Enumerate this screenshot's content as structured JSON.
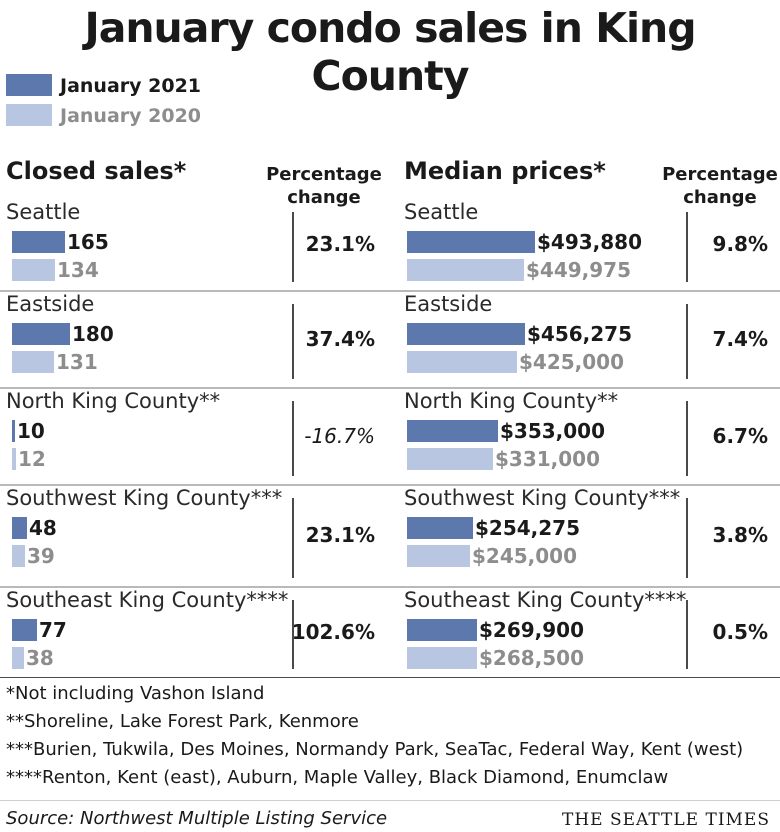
{
  "title": "January condo sales in King County",
  "legend": [
    {
      "label": "January 2021",
      "color": "#5d78ad",
      "label_color": "#1a1a1a"
    },
    {
      "label": "January 2020",
      "color": "#b8c6e2",
      "label_color": "#8d8d8d"
    }
  ],
  "headers": {
    "sales": "Closed sales*",
    "prices": "Median prices*",
    "pct_line1": "Percentage",
    "pct_line2": "change"
  },
  "chart_data": [
    {
      "type": "bar",
      "title": "Closed sales*",
      "categories": [
        "Seattle",
        "Eastside",
        "North King County**",
        "Southwest King County***",
        "Southeast King County****"
      ],
      "series": [
        {
          "name": "January 2021",
          "values": [
            165,
            180,
            10,
            48,
            77
          ],
          "labels": [
            "165",
            "180",
            "10",
            "48",
            "77"
          ]
        },
        {
          "name": "January 2020",
          "values": [
            134,
            131,
            12,
            39,
            38
          ],
          "labels": [
            "134",
            "131",
            "12",
            "39",
            "38"
          ]
        }
      ],
      "pct_change": [
        "23.1%",
        "37.4%",
        "-16.7%",
        "23.1%",
        "102.6%"
      ]
    },
    {
      "type": "bar",
      "title": "Median prices*",
      "categories": [
        "Seattle",
        "Eastside",
        "North King County**",
        "Southwest King County***",
        "Southeast King County****"
      ],
      "series": [
        {
          "name": "January 2021",
          "values": [
            493880,
            456275,
            353000,
            254275,
            269900
          ],
          "labels": [
            "$493,880",
            "$456,275",
            "$353,000",
            "$254,275",
            "$269,900"
          ]
        },
        {
          "name": "January 2020",
          "values": [
            449975,
            425000,
            331000,
            245000,
            268500
          ],
          "labels": [
            "$449,975",
            "$425,000",
            "$331,000",
            "$245,000",
            "$268,500"
          ]
        }
      ],
      "pct_change": [
        "9.8%",
        "7.4%",
        "6.7%",
        "3.8%",
        "0.5%"
      ]
    }
  ],
  "footnotes": [
    "*Not including Vashon Island",
    "**Shoreline, Lake Forest Park, Kenmore",
    "***Burien, Tukwila, Des Moines, Normandy Park, SeaTac, Federal Way, Kent (west)",
    "****Renton, Kent (east), Auburn, Maple Valley, Black Diamond, Enumclaw"
  ],
  "source": "Source: Northwest Multiple Listing Service",
  "credit": "THE SEATTLE TIMES"
}
